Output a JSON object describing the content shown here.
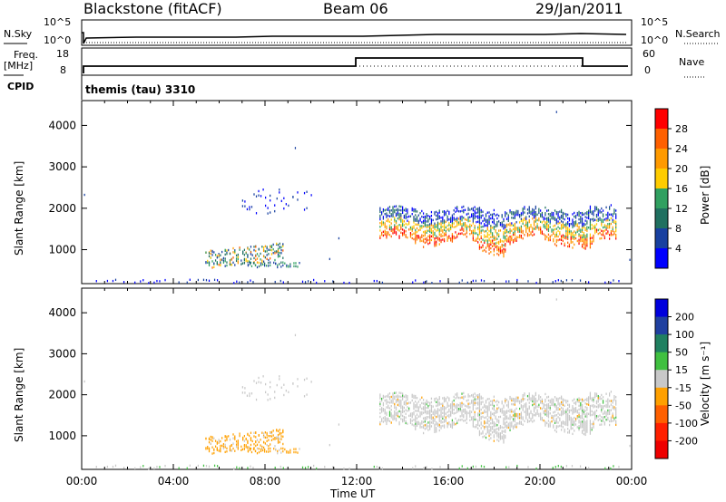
{
  "header": {
    "station": "Blackstone (fitACF)",
    "beam": "Beam 06",
    "date": "29/Jan/2011"
  },
  "params": {
    "nsky_label": "N.Sky",
    "nsearch_label": "N.Search",
    "freq_label": "Freq.",
    "freq_unit": "[MHz]",
    "nave_label": "Nave",
    "cpid_label": "CPID",
    "cpid_text": "themis (tau) 3310",
    "noise_ticks": [
      "10^5",
      "10^0"
    ],
    "noise_ticks_right": [
      "10^5",
      "10^0"
    ],
    "freq_ticks": [
      "18",
      "8"
    ],
    "nave_ticks": [
      "60",
      "0"
    ]
  },
  "chart_data": [
    {
      "type": "heatmap",
      "title": "",
      "ylabel": "Slant Range [km]",
      "xlabel": "",
      "ylim": [
        180,
        4600
      ],
      "xlim": [
        0,
        24
      ],
      "yticks": [
        "4000",
        "3000",
        "2000",
        "1000"
      ],
      "colorbar": {
        "label": "Power [dB]",
        "ticks": [
          "28",
          "24",
          "20",
          "16",
          "12",
          "8",
          "4"
        ],
        "colors": [
          "#ff0000",
          "#ff6000",
          "#ff9a00",
          "#ffcc00",
          "#30a060",
          "#207060",
          "#1840a0",
          "#0000ff"
        ]
      },
      "features": [
        {
          "name": "morning echo band",
          "t_start": 5.5,
          "t_end": 8.8,
          "range_km": [
            650,
            1150
          ]
        },
        {
          "name": "sparse upper echoes",
          "t_start": 6.5,
          "t_end": 10.0,
          "range_km": [
            1900,
            2500
          ]
        },
        {
          "name": "post-noon range band",
          "t_start": 13.0,
          "t_end": 23.3,
          "range_km": [
            1000,
            2300
          ]
        }
      ]
    },
    {
      "type": "heatmap",
      "title": "",
      "ylabel": "Slant Range [km]",
      "xlabel": "Time UT",
      "ylim": [
        180,
        4600
      ],
      "xlim": [
        0,
        24
      ],
      "yticks": [
        "4000",
        "3000",
        "2000",
        "1000"
      ],
      "xticks": [
        "00:00",
        "04:00",
        "08:00",
        "12:00",
        "16:00",
        "20:00",
        "00:00"
      ],
      "colorbar": {
        "label": "Velocity [m s⁻¹]",
        "ticks": [
          "200",
          "100",
          "50",
          "15",
          "-15",
          "-50",
          "-100",
          "-200"
        ],
        "colors": [
          "#0000dd",
          "#2040a0",
          "#208060",
          "#40c040",
          "#c8c8c8",
          "#ffa000",
          "#ff6000",
          "#ff2000",
          "#ee0000"
        ]
      }
    }
  ]
}
